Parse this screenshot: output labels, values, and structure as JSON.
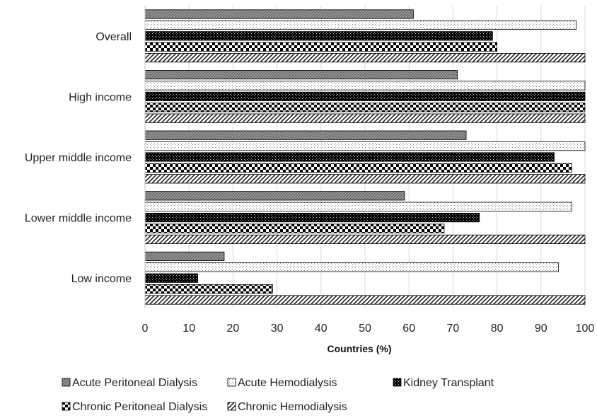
{
  "chart_data": {
    "type": "bar",
    "orientation": "horizontal",
    "title": "",
    "xlabel": "Countries (%)",
    "ylabel": "",
    "xlim": [
      0,
      100
    ],
    "x_ticks": [
      "0",
      "10",
      "20",
      "30",
      "40",
      "50",
      "60",
      "70",
      "80",
      "90",
      "100"
    ],
    "grid": "vertical",
    "legend_position": "bottom",
    "categories": [
      "Overall",
      "High income",
      "Upper middle income",
      "Lower middle income",
      "Low income"
    ],
    "series": [
      {
        "name": "Acute Peritoneal Dialysis",
        "pattern": "diagonal-gray",
        "color": "#7f7f7f",
        "values": [
          61,
          71,
          73,
          59,
          18
        ]
      },
      {
        "name": "Acute Hemodialysis",
        "pattern": "light-dots",
        "color": "#f2f2f2",
        "values": [
          98,
          100,
          100,
          97,
          94
        ]
      },
      {
        "name": "Kidney Transplant",
        "pattern": "dark-dots",
        "color": "#111111",
        "values": [
          79,
          100,
          93,
          76,
          12
        ]
      },
      {
        "name": "Chronic Peritoneal Dialysis",
        "pattern": "checker",
        "color": "#555555",
        "values": [
          80,
          100,
          97,
          68,
          29
        ]
      },
      {
        "name": "Chronic Hemodialysis",
        "pattern": "wide-diagonal",
        "color": "#888888",
        "values": [
          100,
          100,
          100,
          100,
          100
        ]
      }
    ]
  }
}
